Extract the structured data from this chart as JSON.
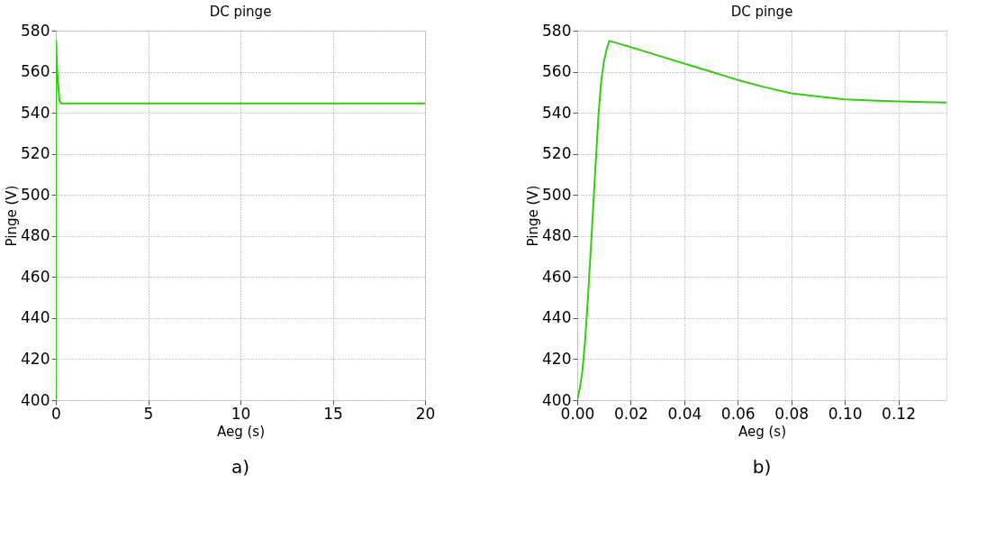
{
  "chart_data": [
    {
      "type": "line",
      "title": "DC pinge",
      "xlabel": "Aeg (s)",
      "ylabel": "Pinge (V)",
      "annotations": [
        "a)"
      ],
      "series": [
        {
          "color": "#33cc11",
          "x": [
            0,
            0.02,
            0.05,
            0.1,
            0.2,
            0.3,
            5,
            10,
            15,
            20
          ],
          "values": [
            400,
            575,
            565,
            556,
            546,
            544.5,
            544.5,
            544.5,
            544.5,
            544.5
          ]
        }
      ],
      "xlim": [
        0,
        20
      ],
      "xticks": [
        0,
        5,
        10,
        15,
        20
      ],
      "ylim": [
        400,
        580
      ],
      "yticks": [
        400,
        420,
        440,
        460,
        480,
        500,
        520,
        540,
        560,
        580
      ],
      "grid": true,
      "line_style": "solid",
      "marker": "none"
    },
    {
      "type": "line",
      "title": "DC pinge",
      "xlabel": "Aeg (s)",
      "ylabel": "Pinge (V)",
      "annotations": [
        "b)"
      ],
      "series": [
        {
          "color": "#33cc11",
          "x": [
            0,
            0.001,
            0.002,
            0.003,
            0.004,
            0.005,
            0.006,
            0.007,
            0.008,
            0.009,
            0.01,
            0.011,
            0.012,
            0.02,
            0.03,
            0.04,
            0.05,
            0.06,
            0.07,
            0.08,
            0.09,
            0.1,
            0.11,
            0.12,
            0.13,
            0.138
          ],
          "values": [
            400,
            406,
            415,
            430,
            450,
            472,
            495,
            518,
            540,
            556,
            565,
            571,
            575,
            572,
            568,
            564,
            560,
            556,
            552.5,
            549.5,
            548,
            546.5,
            546,
            545.5,
            545.2,
            545
          ]
        }
      ],
      "xlim": [
        0,
        0.138
      ],
      "xticks": [
        {
          "value": 0,
          "label": "0.00"
        },
        0.02,
        0.04,
        0.06,
        0.08,
        {
          "value": 0.1,
          "label": "0.10"
        },
        0.12
      ],
      "ylim": [
        400,
        580
      ],
      "yticks": [
        400,
        420,
        440,
        460,
        480,
        500,
        520,
        540,
        560,
        580
      ],
      "grid": true,
      "line_style": "solid",
      "marker": "none"
    }
  ]
}
